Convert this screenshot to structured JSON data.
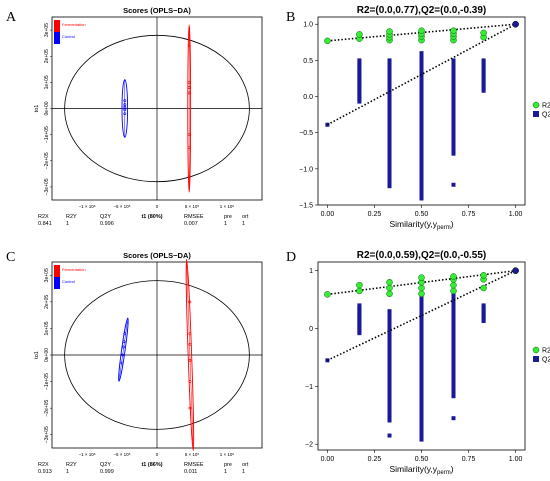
{
  "panel_letters": [
    "A",
    "B",
    "C",
    "D"
  ],
  "chart_data": [
    {
      "panel": "A",
      "type": "scatter",
      "title": "Scores (OPLS−DA)",
      "xlabel": "t1 (80%)",
      "ylabel": "to1",
      "x_ticks": [
        "−1 × 10⁶",
        "−5 × 10⁵",
        "0",
        "5 × 10⁵",
        "1 × 10⁶"
      ],
      "y_ticks": [
        "3e+05",
        "2e+05",
        "1e+05",
        "0e+00",
        "−1e+05",
        "−2e+05",
        "−3e+05"
      ],
      "xlim": [
        -1500000,
        1500000
      ],
      "ylim": [
        -350000,
        350000
      ],
      "legend": [
        "Fermentation",
        "Control"
      ],
      "colors": {
        "Fermentation": "#ff0000",
        "Control": "#0000ff"
      },
      "series": [
        {
          "name": "Control",
          "x": [
            -460000,
            -460000,
            -460000,
            -460000,
            -460000
          ],
          "y": [
            30000,
            15000,
            5000,
            -5000,
            -20000
          ],
          "ellipse": {
            "cx": -460000,
            "cy": 0,
            "rx": 40000,
            "ry": 110000
          }
        },
        {
          "name": "Fermentation",
          "x": [
            460000,
            460000,
            460000,
            460000,
            460000,
            460000,
            460000
          ],
          "y": [
            240000,
            100000,
            80000,
            60000,
            -100000,
            -150000,
            -260000
          ],
          "ellipse": {
            "cx": 460000,
            "cy": 0,
            "rx": 20000,
            "ry": 320000
          }
        }
      ],
      "stats": {
        "headers": [
          "R2X",
          "R2Y",
          "Q2Y",
          "RMSEE",
          "pre",
          "ort"
        ],
        "values": [
          "0.841",
          "1",
          "0.996",
          "0.007",
          "1",
          "1"
        ]
      }
    },
    {
      "panel": "B",
      "type": "scatter",
      "title": "R2=(0.0,0.77),Q2=(0.0,-0.39)",
      "xlabel": "Similarity(y,y",
      "xlabel_sub": "perm",
      "xlabel_end": ")",
      "xlim": [
        -0.05,
        1.05
      ],
      "ylim": [
        -1.5,
        1.1
      ],
      "x_ticks": [
        0.0,
        0.25,
        0.5,
        0.75,
        1.0
      ],
      "x_tick_labels": [
        "0.00",
        "0.25",
        "0.50",
        "0.75",
        "1.00"
      ],
      "y_ticks": [
        1.0,
        0.5,
        0.0,
        -0.5,
        -1.0,
        -1.5
      ],
      "y_tick_labels": [
        "1.0",
        "0.5",
        "0.0",
        "−0.5",
        "−1.0",
        "−1.5"
      ],
      "legend": [
        "R2",
        "Q2"
      ],
      "colors": {
        "R2": "#33ee33",
        "Q2": "#1a1a99"
      },
      "r2_points": [
        {
          "x": 0.0,
          "y": 0.77
        },
        {
          "x": 0.17,
          "y": 0.8
        },
        {
          "x": 0.17,
          "y": 0.86
        },
        {
          "x": 0.33,
          "y": 0.78
        },
        {
          "x": 0.33,
          "y": 0.82
        },
        {
          "x": 0.33,
          "y": 0.86
        },
        {
          "x": 0.33,
          "y": 0.9
        },
        {
          "x": 0.5,
          "y": 0.78
        },
        {
          "x": 0.5,
          "y": 0.83
        },
        {
          "x": 0.5,
          "y": 0.87
        },
        {
          "x": 0.5,
          "y": 0.91
        },
        {
          "x": 0.67,
          "y": 0.78
        },
        {
          "x": 0.67,
          "y": 0.83
        },
        {
          "x": 0.67,
          "y": 0.87
        },
        {
          "x": 0.67,
          "y": 0.91
        },
        {
          "x": 0.83,
          "y": 0.82
        },
        {
          "x": 0.83,
          "y": 0.88
        },
        {
          "x": 1.0,
          "y": 1.0
        }
      ],
      "q2_columns": [
        {
          "x": 0.17,
          "from": 0.5,
          "to": -0.1
        },
        {
          "x": 0.33,
          "from": 0.5,
          "to": -1.25
        },
        {
          "x": 0.5,
          "from": 0.6,
          "to": -1.42
        },
        {
          "x": 0.67,
          "from": 0.5,
          "to": -0.8
        },
        {
          "x": 0.83,
          "from": 0.5,
          "to": 0.05
        }
      ],
      "q2_extra": [
        {
          "x": 0.67,
          "y": -1.22
        },
        {
          "x": 0.0,
          "y": -0.39
        }
      ],
      "r2_line": {
        "x0": 0.0,
        "y0": 0.77,
        "x1": 1.0,
        "y1": 1.0
      },
      "q2_line": {
        "x0": 0.0,
        "y0": -0.39,
        "x1": 1.0,
        "y1": 1.0
      }
    },
    {
      "panel": "C",
      "type": "scatter",
      "title": "Scores (OPLS−DA)",
      "xlabel": "t1 (86%)",
      "ylabel": "to1",
      "x_ticks": [
        "−1 × 10⁶",
        "−5 × 10⁵",
        "0",
        "5 × 10⁵",
        "1 × 10⁶"
      ],
      "y_ticks": [
        "3e+05",
        "2e+05",
        "1e+05",
        "0e+00",
        "−1e+05",
        "−2e+05",
        "−3e+05"
      ],
      "xlim": [
        -1500000,
        1500000
      ],
      "ylim": [
        -350000,
        350000
      ],
      "legend": [
        "Fermentation",
        "Control"
      ],
      "colors": {
        "Fermentation": "#ff0000",
        "Control": "#0000ff"
      },
      "series": [
        {
          "name": "Control",
          "x": [
            -460000,
            -470000,
            -480000,
            -490000,
            -500000
          ],
          "y": [
            80000,
            50000,
            30000,
            0,
            -30000
          ],
          "ellipse": {
            "cx": -480000,
            "cy": 20000,
            "rx": 25000,
            "ry": 120000,
            "rot": 8
          }
        },
        {
          "name": "Fermentation",
          "x": [
            470000,
            470000,
            470000,
            470000,
            470000,
            470000
          ],
          "y": [
            200000,
            80000,
            40000,
            -20000,
            -100000,
            -200000
          ],
          "ellipse": {
            "cx": 470000,
            "cy": 0,
            "rx": 25000,
            "ry": 360000,
            "rot": -2
          }
        }
      ],
      "stats": {
        "headers": [
          "R2X",
          "R2Y",
          "Q2Y",
          "RMSEE",
          "pre",
          "ort"
        ],
        "values": [
          "0.913",
          "1",
          "0.999",
          "0.011",
          "1",
          "1"
        ]
      }
    },
    {
      "panel": "D",
      "type": "scatter",
      "title": "R2=(0.0,0.59),Q2=(0.0,-0.55)",
      "xlabel": "Similarity(y,y",
      "xlabel_sub": "perm",
      "xlabel_end": ")",
      "xlim": [
        -0.05,
        1.05
      ],
      "ylim": [
        -2.1,
        1.15
      ],
      "x_ticks": [
        0.0,
        0.25,
        0.5,
        0.75,
        1.0
      ],
      "x_tick_labels": [
        "0.00",
        "0.25",
        "0.50",
        "0.75",
        "1.00"
      ],
      "y_ticks": [
        1,
        0,
        -1,
        -2
      ],
      "y_tick_labels": [
        "1",
        "0",
        "−1",
        "−2"
      ],
      "legend": [
        "R2",
        "Q2"
      ],
      "colors": {
        "R2": "#33ee33",
        "Q2": "#1a1a99"
      },
      "r2_points": [
        {
          "x": 0.0,
          "y": 0.59
        },
        {
          "x": 0.17,
          "y": 0.65
        },
        {
          "x": 0.17,
          "y": 0.75
        },
        {
          "x": 0.33,
          "y": 0.6
        },
        {
          "x": 0.33,
          "y": 0.7
        },
        {
          "x": 0.33,
          "y": 0.8
        },
        {
          "x": 0.5,
          "y": 0.6
        },
        {
          "x": 0.5,
          "y": 0.7
        },
        {
          "x": 0.5,
          "y": 0.8
        },
        {
          "x": 0.5,
          "y": 0.88
        },
        {
          "x": 0.67,
          "y": 0.65
        },
        {
          "x": 0.67,
          "y": 0.75
        },
        {
          "x": 0.67,
          "y": 0.85
        },
        {
          "x": 0.67,
          "y": 0.9
        },
        {
          "x": 0.83,
          "y": 0.7
        },
        {
          "x": 0.83,
          "y": 0.85
        },
        {
          "x": 0.83,
          "y": 0.92
        },
        {
          "x": 1.0,
          "y": 1.0
        }
      ],
      "q2_columns": [
        {
          "x": 0.17,
          "from": 0.4,
          "to": -0.1
        },
        {
          "x": 0.33,
          "from": 0.3,
          "to": -1.6
        },
        {
          "x": 0.5,
          "from": 0.6,
          "to": -1.95
        },
        {
          "x": 0.67,
          "from": 0.6,
          "to": -1.2
        },
        {
          "x": 0.83,
          "from": 0.4,
          "to": 0.1
        }
      ],
      "q2_extra": [
        {
          "x": 0.33,
          "y": -1.85
        },
        {
          "x": 0.67,
          "y": -1.55
        },
        {
          "x": 0.0,
          "y": -0.55
        }
      ],
      "r2_line": {
        "x0": 0.0,
        "y0": 0.59,
        "x1": 1.0,
        "y1": 1.0
      },
      "q2_line": {
        "x0": 0.0,
        "y0": -0.55,
        "x1": 1.0,
        "y1": 1.0
      }
    }
  ]
}
